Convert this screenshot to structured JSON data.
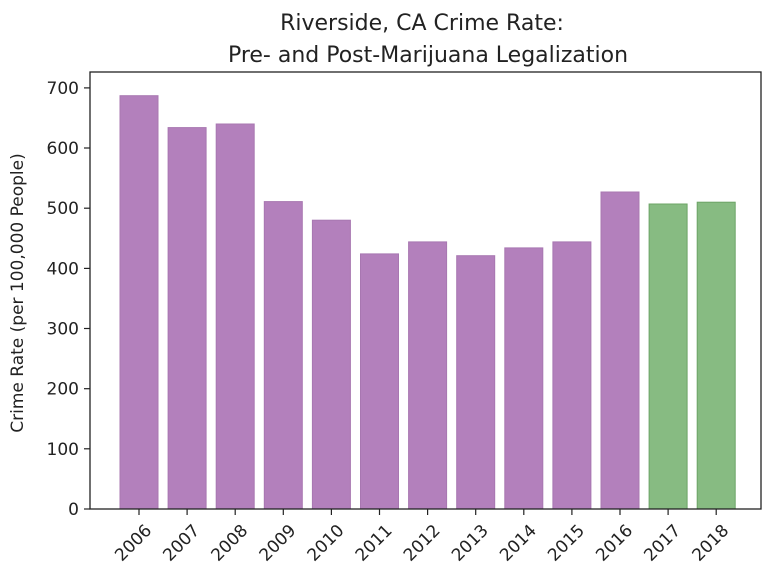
{
  "chart_data": {
    "type": "bar",
    "title_lines": [
      "Riverside, CA Crime Rate:",
      "Pre- and Post-Marijuana Legalization"
    ],
    "xlabel": "",
    "ylabel": "Crime Rate (per 100,000 People)",
    "categories": [
      "2006",
      "2007",
      "2008",
      "2009",
      "2010",
      "2011",
      "2012",
      "2013",
      "2014",
      "2015",
      "2016",
      "2017",
      "2018"
    ],
    "values": [
      687,
      634,
      640,
      511,
      480,
      424,
      444,
      421,
      434,
      444,
      527,
      507,
      510
    ],
    "period": [
      "pre",
      "pre",
      "pre",
      "pre",
      "pre",
      "pre",
      "pre",
      "pre",
      "pre",
      "pre",
      "pre",
      "post",
      "post"
    ],
    "colors": {
      "pre": "#b380bc",
      "post": "#87bb82",
      "pre_edge": "#a877b1",
      "post_edge": "#6ca466"
    },
    "ylim": [
      0,
      725
    ],
    "yticks": [
      0,
      100,
      200,
      300,
      400,
      500,
      600,
      700
    ],
    "grid": false,
    "legend": "none"
  }
}
